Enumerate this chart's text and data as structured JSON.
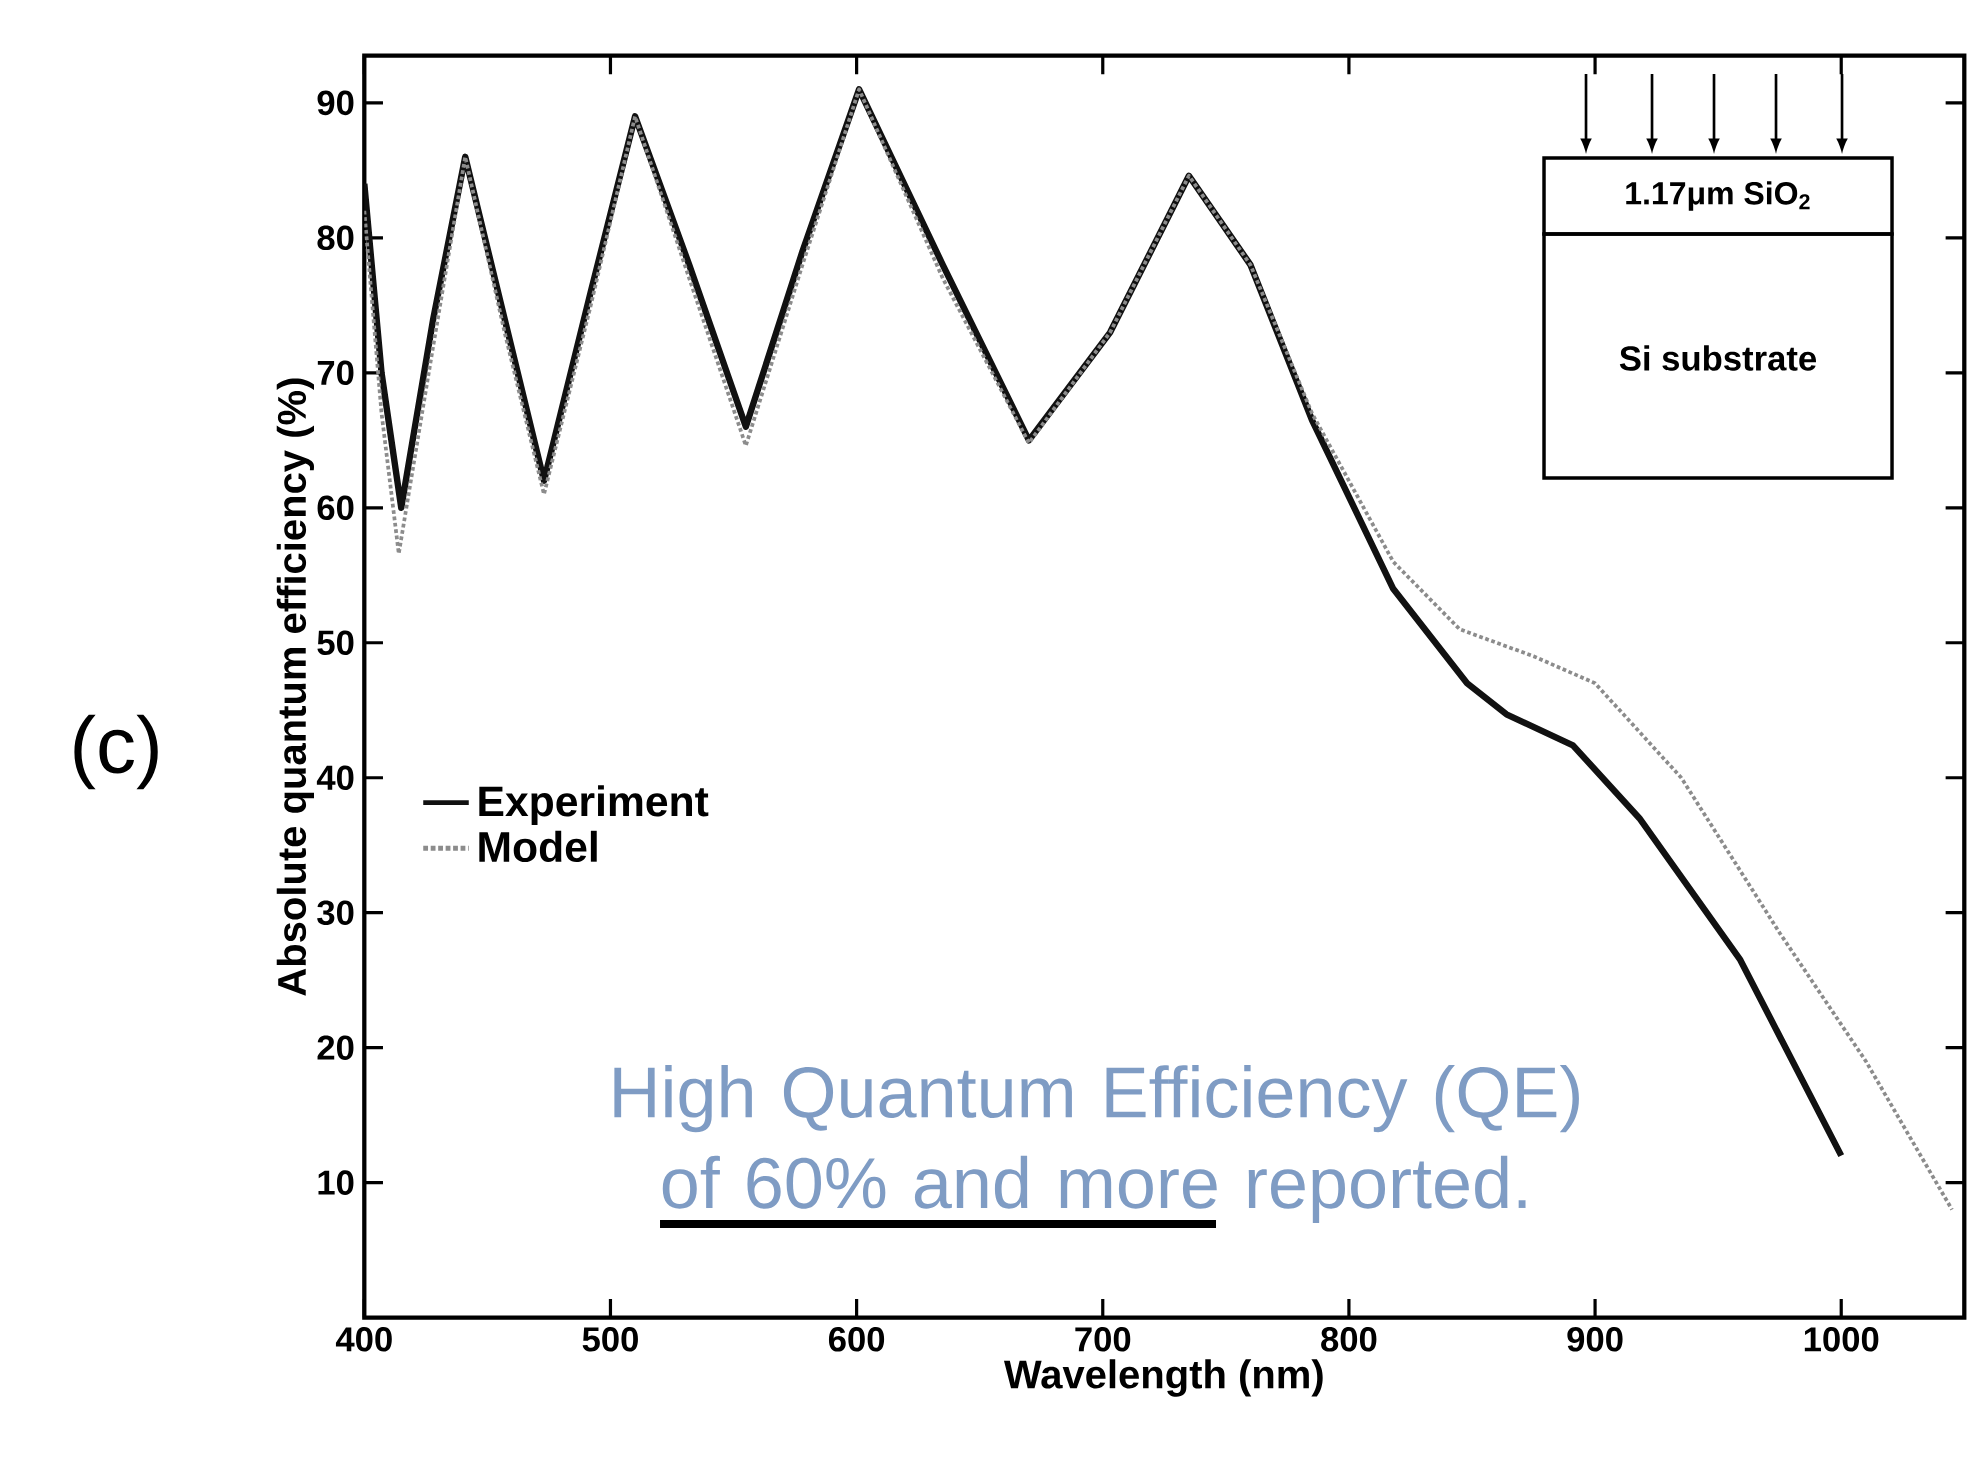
{
  "chart_data": {
    "type": "line",
    "xlabel": "Wavelength (nm)",
    "ylabel": "Absolute quantum efficiency (%)",
    "xlim": [
      400,
      1050
    ],
    "ylim": [
      0,
      93.5
    ],
    "xticks": [
      400,
      500,
      600,
      700,
      800,
      900,
      1000
    ],
    "yticks": [
      10,
      20,
      30,
      40,
      50,
      60,
      70,
      80,
      90
    ],
    "legend": "left",
    "grid": false,
    "series": [
      {
        "name": "Experiment",
        "color": "#111111",
        "line_style": "solid",
        "x": [
          400,
          407,
          415,
          428,
          441,
          457,
          473,
          492,
          510,
          532,
          555,
          578,
          601,
          635,
          670,
          703,
          735,
          760,
          785,
          818,
          848,
          864,
          891,
          918,
          959,
          1000
        ],
        "values": [
          84,
          70,
          60,
          74,
          86,
          74,
          62,
          76,
          89,
          78,
          66,
          79,
          91,
          78,
          65,
          73,
          84.6,
          78,
          66.5,
          54,
          47,
          44.7,
          42.4,
          37,
          26.5,
          12
        ]
      },
      {
        "name": "Model",
        "color": "#8c8c8c",
        "line_style": "dotted",
        "x": [
          400,
          407,
          414,
          428,
          441,
          457,
          473,
          492,
          510,
          532,
          555,
          578,
          601,
          635,
          670,
          703,
          735,
          760,
          785,
          818,
          845,
          875,
          900,
          935,
          975,
          1010,
          1045
        ],
        "values": [
          82,
          67,
          56.6,
          72,
          86,
          73,
          61,
          75,
          89,
          77,
          64.6,
          78,
          91,
          77,
          64.8,
          73,
          84.6,
          78,
          67,
          56,
          51,
          49,
          47,
          40,
          28.5,
          19,
          8
        ]
      }
    ],
    "annotations": [
      "(c)",
      "1.17μm SiO$_{2}$",
      "Si substrate",
      "High Quantum Efficiency (QE) of 60% and more reported."
    ]
  }
}
